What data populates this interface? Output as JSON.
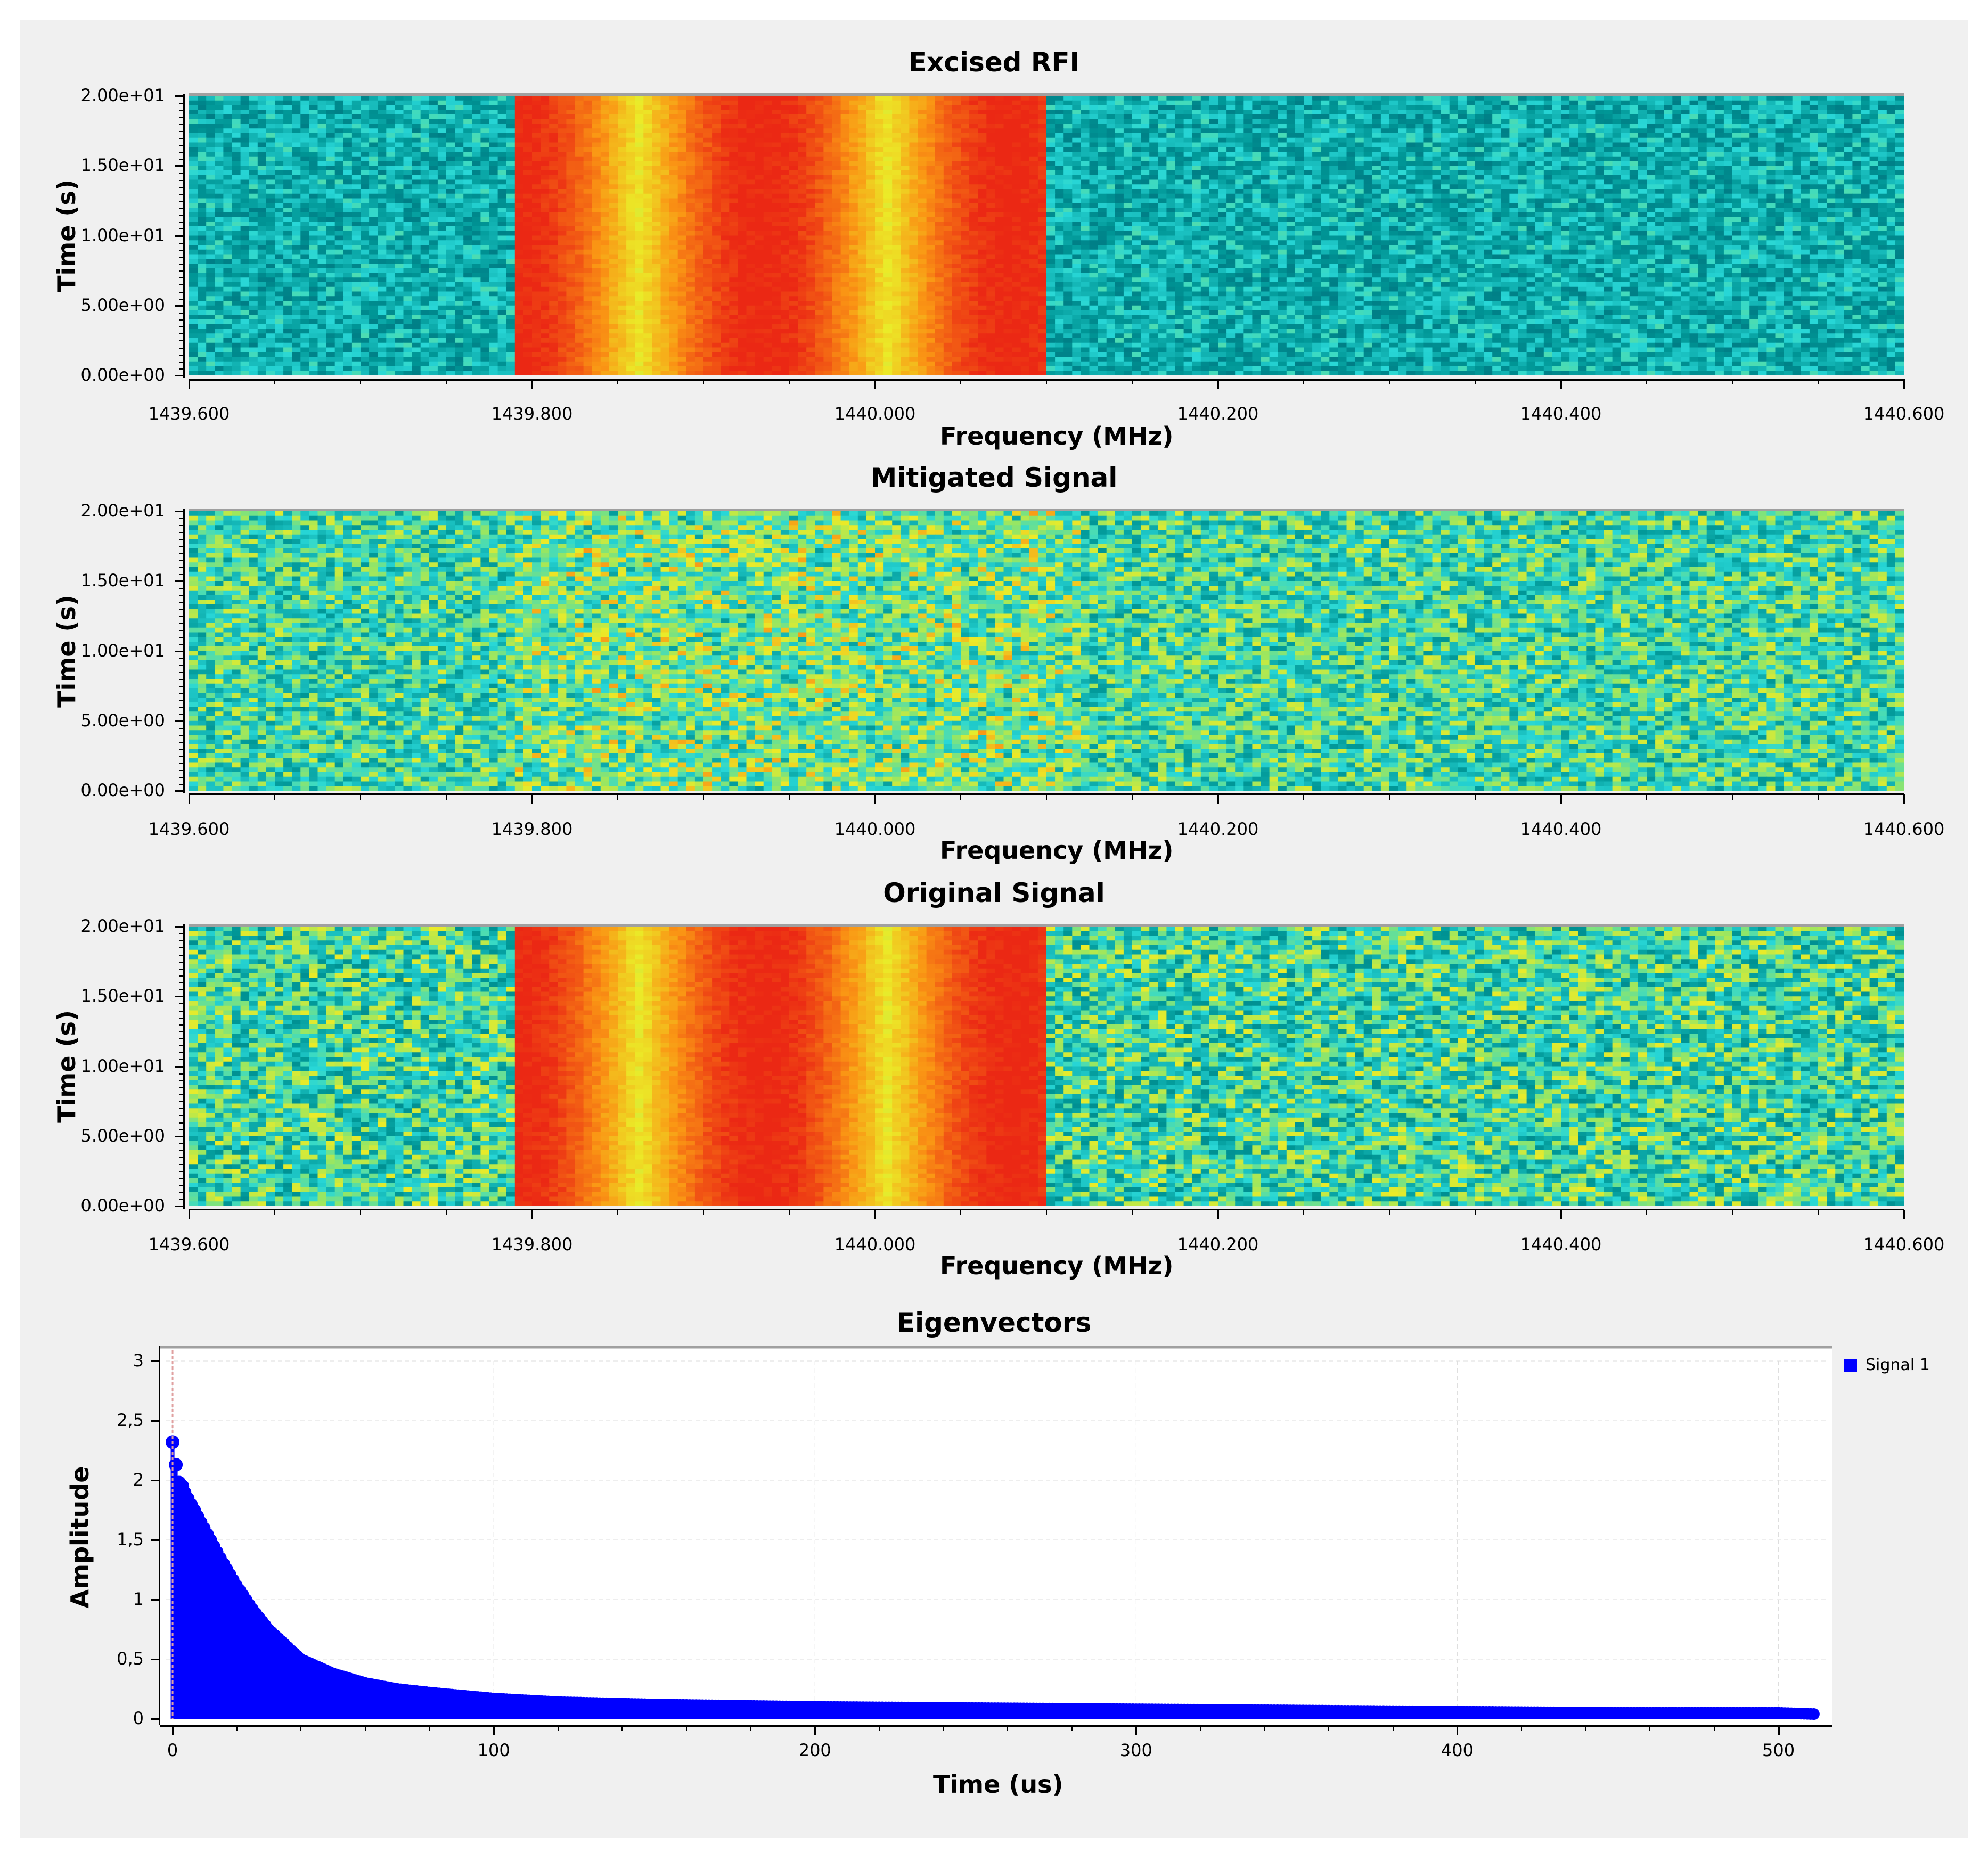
{
  "spectrograms": [
    {
      "title": "Excised RFI",
      "ylabel": "Time (s)",
      "xlabel": "Frequency (MHz)",
      "y_ticks": [
        "2.00e+01",
        "1.50e+01",
        "1.00e+01",
        "5.00e+00",
        "0.00e+00"
      ],
      "x_ticks": [
        "1439.600",
        "1439.800",
        "1440.000",
        "1440.200",
        "1440.400",
        "1440.600"
      ],
      "variant": "rfi"
    },
    {
      "title": "Mitigated Signal",
      "ylabel": "Time (s)",
      "xlabel": "Frequency (MHz)",
      "y_ticks": [
        "2.00e+01",
        "1.50e+01",
        "1.00e+01",
        "5.00e+00",
        "0.00e+00"
      ],
      "x_ticks": [
        "1439.600",
        "1439.800",
        "1440.000",
        "1440.200",
        "1440.400",
        "1440.600"
      ],
      "variant": "mitigated"
    },
    {
      "title": "Original Signal",
      "ylabel": "Time (s)",
      "xlabel": "Frequency (MHz)",
      "y_ticks": [
        "2.00e+01",
        "1.50e+01",
        "1.00e+01",
        "5.00e+00",
        "0.00e+00"
      ],
      "x_ticks": [
        "1439.600",
        "1439.800",
        "1440.000",
        "1440.200",
        "1440.400",
        "1440.600"
      ],
      "variant": "original"
    }
  ],
  "chart_data": [
    {
      "type": "heatmap",
      "title": "Excised RFI",
      "xlabel": "Frequency (MHz)",
      "ylabel": "Time (s)",
      "xlim": [
        1439.6,
        1440.6
      ],
      "ylim": [
        0,
        20
      ],
      "rfi_band_mhz": [
        1439.79,
        1440.1
      ]
    },
    {
      "type": "heatmap",
      "title": "Mitigated Signal",
      "xlabel": "Frequency (MHz)",
      "ylabel": "Time (s)",
      "xlim": [
        1439.6,
        1440.6
      ],
      "ylim": [
        0,
        20
      ]
    },
    {
      "type": "heatmap",
      "title": "Original Signal",
      "xlabel": "Frequency (MHz)",
      "ylabel": "Time (s)",
      "xlim": [
        1439.6,
        1440.6
      ],
      "ylim": [
        0,
        20
      ],
      "rfi_band_mhz": [
        1439.79,
        1440.1
      ]
    },
    {
      "type": "scatter",
      "title": "Eigenvectors",
      "xlabel": "Time (us)",
      "ylabel": "Amplitude",
      "xlim": [
        -2,
        515
      ],
      "ylim": [
        0,
        3
      ],
      "x_ticks": [
        "0",
        "100",
        "200",
        "300",
        "400",
        "500"
      ],
      "y_ticks": [
        "3",
        "2,5",
        "2",
        "1,5",
        "1",
        "0,5",
        "0"
      ],
      "grid": true,
      "legend_position": "top-right",
      "series": [
        {
          "name": "Signal 1",
          "x": [
            0,
            1,
            2,
            3,
            5,
            8,
            10,
            15,
            20,
            25,
            30,
            40,
            50,
            60,
            70,
            80,
            100,
            120,
            150,
            200,
            250,
            300,
            350,
            400,
            450,
            500,
            511
          ],
          "y": [
            2.32,
            2.13,
            1.98,
            1.95,
            1.85,
            1.7,
            1.6,
            1.35,
            1.12,
            0.92,
            0.75,
            0.5,
            0.38,
            0.3,
            0.25,
            0.22,
            0.17,
            0.14,
            0.12,
            0.1,
            0.09,
            0.08,
            0.07,
            0.06,
            0.05,
            0.05,
            0.04
          ]
        }
      ]
    }
  ],
  "eigen_legend": "Signal 1",
  "colors": {
    "stem": "#0000ff",
    "marker_line": "#e0a0a0",
    "grid": "#dddddd"
  }
}
